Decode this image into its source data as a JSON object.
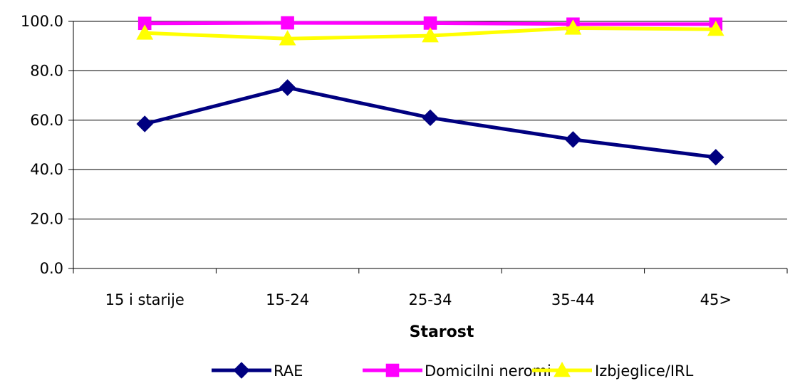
{
  "chart_data": {
    "type": "line",
    "title": "",
    "xlabel": "Starost",
    "ylabel": "",
    "categories": [
      "15 i starije",
      "15-24",
      "25-34",
      "35-44",
      "45>"
    ],
    "ylim": [
      0,
      100
    ],
    "yticks": [
      "0.0",
      "20.0",
      "40.0",
      "60.0",
      "80.0",
      "100.0"
    ],
    "grid": true,
    "legend_position": "bottom",
    "series": [
      {
        "name": "RAE",
        "values": [
          58.5,
          73.2,
          61.0,
          52.2,
          45.0
        ],
        "color": "#000080",
        "marker": "diamond"
      },
      {
        "name": "Domicilni neromi",
        "values": [
          99.2,
          99.4,
          99.3,
          98.9,
          98.9
        ],
        "color": "#ff00ff",
        "marker": "square"
      },
      {
        "name": "Izbjeglice/IRL",
        "values": [
          95.3,
          93.0,
          94.2,
          97.3,
          96.8
        ],
        "color": "#ffff00",
        "marker": "triangle"
      }
    ]
  }
}
